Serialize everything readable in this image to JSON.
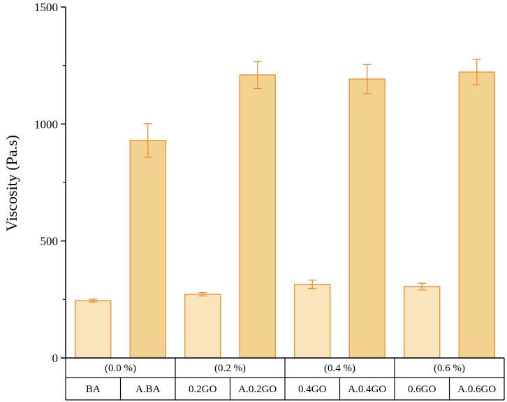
{
  "chart_data": {
    "type": "bar",
    "title": "",
    "xlabel": "",
    "ylabel": "Viscosity (Pa.s)",
    "ylim": [
      0,
      1500
    ],
    "yticks": [
      0,
      500,
      1000,
      1500
    ],
    "grid": false,
    "groups": [
      {
        "label": "(0.0 %)",
        "categories": [
          "BA",
          "A.BA"
        ]
      },
      {
        "label": "(0.2 %)",
        "categories": [
          "0.2GO",
          "A.0.2GO"
        ]
      },
      {
        "label": "(0.4 %)",
        "categories": [
          "0.4GO",
          "A.0.4GO"
        ]
      },
      {
        "label": "(0.6 %)",
        "categories": [
          "0.6GO",
          "A.0.6GO"
        ]
      }
    ],
    "categories": [
      "BA",
      "A.BA",
      "0.2GO",
      "A.0.2GO",
      "0.4GO",
      "A.0.4GO",
      "0.6GO",
      "A.0.6GO"
    ],
    "values": [
      245,
      930,
      272,
      1210,
      315,
      1192,
      305,
      1222
    ],
    "errors": [
      6,
      72,
      7,
      58,
      18,
      62,
      14,
      55
    ],
    "colors": {
      "light_fill": "#f9e4bb",
      "dark_fill": "#f2d28f",
      "bar_edge": "#f28c28",
      "error_bar": "#f28c28"
    }
  }
}
